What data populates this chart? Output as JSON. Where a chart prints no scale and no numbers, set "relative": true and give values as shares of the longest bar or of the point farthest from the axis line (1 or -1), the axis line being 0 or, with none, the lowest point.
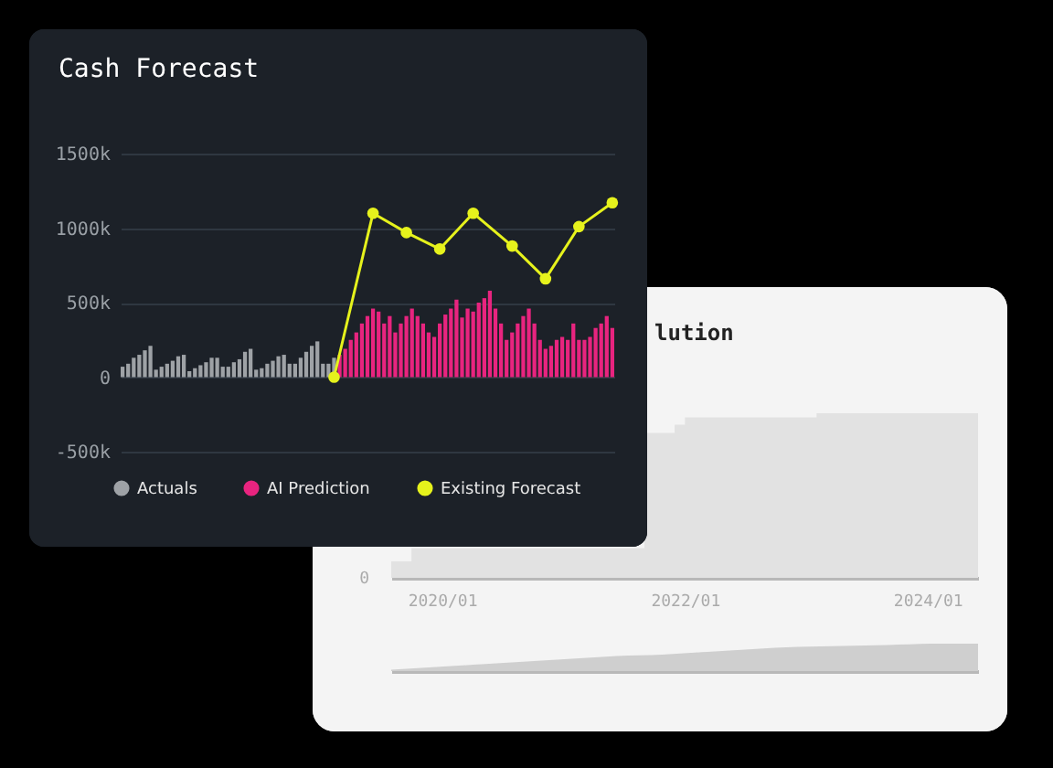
{
  "chart_data": [
    {
      "type": "bar",
      "title": "Cash Forecast",
      "categories": [
        null,
        null,
        null,
        null,
        null,
        null,
        null,
        null,
        null,
        null,
        null,
        null,
        null,
        null,
        null,
        null,
        null,
        null,
        null,
        null,
        null,
        null,
        null,
        null,
        null,
        null,
        null,
        null,
        null,
        null,
        null,
        null,
        null,
        null,
        null,
        null,
        null,
        null,
        null,
        null,
        null,
        null,
        null,
        null,
        null,
        null,
        null,
        null,
        null,
        null,
        null,
        null,
        null,
        null,
        null,
        null,
        null,
        null,
        null,
        null,
        null,
        null,
        null,
        null,
        null,
        null,
        null,
        null,
        null,
        null,
        null,
        null,
        null,
        null,
        null,
        null,
        null,
        null,
        null,
        null,
        null,
        null,
        null,
        null,
        null,
        null,
        null,
        null,
        null
      ],
      "series": [
        {
          "name": "Actuals",
          "color": "#9ea2a6",
          "values": [
            70,
            90,
            130,
            150,
            180,
            210,
            50,
            70,
            90,
            110,
            140,
            150,
            40,
            60,
            80,
            100,
            130,
            130,
            70,
            70,
            100,
            120,
            170,
            190,
            50,
            60,
            90,
            110,
            140,
            150,
            90,
            90,
            130,
            170,
            210,
            240,
            90,
            90,
            130,
            null,
            null,
            null,
            null,
            null,
            null,
            null,
            null,
            null,
            null,
            null,
            null,
            null,
            null,
            null,
            null,
            null,
            null,
            null,
            null,
            null,
            null,
            null,
            null,
            null,
            null,
            null,
            null,
            null,
            null,
            null,
            null,
            null,
            null,
            null,
            null,
            null,
            null,
            null,
            null,
            null,
            null,
            null,
            null,
            null,
            null,
            null,
            null,
            null,
            null
          ]
        },
        {
          "name": "AI Prediction",
          "color": "#e8247f",
          "values": [
            null,
            null,
            null,
            null,
            null,
            null,
            null,
            null,
            null,
            null,
            null,
            null,
            null,
            null,
            null,
            null,
            null,
            null,
            null,
            null,
            null,
            null,
            null,
            null,
            null,
            null,
            null,
            null,
            null,
            null,
            null,
            null,
            null,
            null,
            null,
            null,
            null,
            null,
            null,
            150,
            190,
            250,
            300,
            360,
            410,
            460,
            440,
            360,
            410,
            300,
            360,
            410,
            460,
            410,
            360,
            300,
            270,
            360,
            420,
            460,
            520,
            400,
            460,
            440,
            500,
            530,
            580,
            460,
            360,
            250,
            300,
            360,
            410,
            460,
            360,
            250,
            190,
            210,
            250,
            270,
            250,
            360,
            250,
            250,
            270,
            330,
            360,
            410,
            330
          ]
        },
        {
          "name": "Existing Forecast",
          "color": "#e6f21c",
          "type": "line",
          "marker": "circle",
          "values": [
            null,
            null,
            null,
            null,
            null,
            null,
            null,
            null,
            null,
            null,
            null,
            null,
            null,
            null,
            null,
            null,
            null,
            null,
            null,
            null,
            null,
            null,
            null,
            null,
            null,
            null,
            null,
            null,
            null,
            null,
            null,
            null,
            null,
            null,
            null,
            null,
            null,
            null,
            0,
            null,
            null,
            null,
            null,
            null,
            null,
            1100,
            null,
            null,
            null,
            null,
            null,
            970,
            null,
            null,
            null,
            null,
            null,
            860,
            null,
            null,
            null,
            null,
            null,
            1100,
            null,
            null,
            null,
            null,
            null,
            null,
            880,
            null,
            null,
            null,
            null,
            null,
            660,
            null,
            null,
            null,
            null,
            null,
            1010,
            null,
            null,
            null,
            null,
            null,
            1170
          ]
        }
      ],
      "ylim": [
        -500,
        1500
      ],
      "yticks": [
        {
          "value": -500,
          "label": "-500k"
        },
        {
          "value": 0,
          "label": "0"
        },
        {
          "value": 500,
          "label": "500k"
        },
        {
          "value": 1000,
          "label": "1000k"
        },
        {
          "value": 1500,
          "label": "1500k"
        }
      ],
      "grid": "y",
      "legend": "bottom"
    },
    {
      "type": "area",
      "title": "lution",
      "relative": true,
      "x": [
        "2019-08",
        "2019-10",
        "2019-11",
        "2019-12",
        "2021-09",
        "2021-12",
        "2022-01",
        "2023-02",
        "2024-06"
      ],
      "series": [
        {
          "color": "#e2e2e2",
          "values": [
            0.1,
            0.18,
            0.18,
            null,
            0.88,
            0.93,
            0.975,
            1,
            1
          ]
        }
      ],
      "xlim": [
        "2019-08",
        "2024-06"
      ],
      "xticks": [
        {
          "value": "2020-01",
          "label": "2020/01"
        },
        {
          "value": "2022-01",
          "label": "2022/01"
        },
        {
          "value": "2024-01",
          "label": "2024/01"
        }
      ],
      "annotations": [
        "0"
      ]
    },
    {
      "type": "area",
      "relative": true,
      "categories": [
        null,
        null,
        null,
        null,
        null,
        null,
        null,
        null,
        null,
        null,
        null,
        null,
        null,
        null
      ],
      "series": [
        {
          "color": "#cfcfcf",
          "values": [
            0.05,
            0.15,
            0.25,
            0.35,
            0.45,
            0.55,
            0.6,
            0.7,
            0.8,
            0.88,
            0.92,
            0.95,
            1,
            1
          ]
        }
      ]
    }
  ]
}
